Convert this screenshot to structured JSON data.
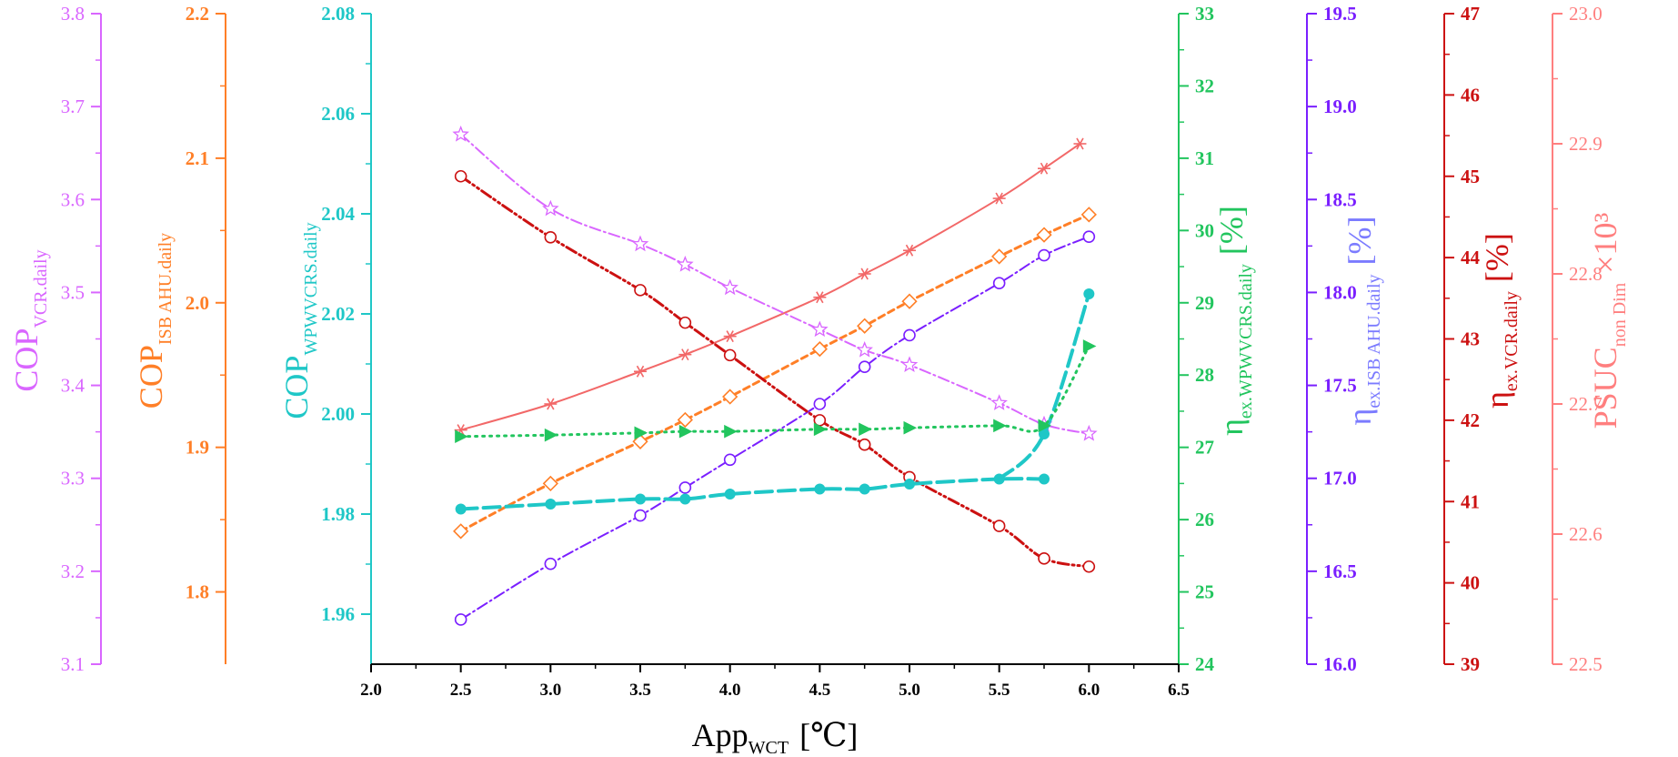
{
  "chart_data": {
    "type": "line",
    "title": "",
    "xlabel": {
      "main": "App",
      "sub": "WCT",
      "unit": "[℃]"
    },
    "x_ticks": [
      "2.0",
      "2.5",
      "3.0",
      "3.5",
      "4.0",
      "4.5",
      "5.0",
      "5.5",
      "6.0",
      "6.5"
    ],
    "xlim": [
      2.0,
      6.5
    ],
    "axes": [
      {
        "id": "cop_vcr",
        "color": "#d966ff",
        "side": "left",
        "lim": [
          3.1,
          3.8
        ],
        "ticks": [
          "3.1",
          "3.2",
          "3.3",
          "3.4",
          "3.5",
          "3.6",
          "3.7",
          "3.8"
        ],
        "label": {
          "main": "COP",
          "sub": "VCR.daily",
          "unit": ""
        }
      },
      {
        "id": "cop_isb",
        "color": "#ff7f27",
        "side": "left",
        "lim": [
          1.75,
          2.2
        ],
        "ticks": [
          "1.8",
          "1.9",
          "2.0",
          "2.1",
          "2.2"
        ],
        "label": {
          "main": "COP",
          "sub": "ISB AHU.daily",
          "unit": ""
        }
      },
      {
        "id": "cop_wpw",
        "color": "#1fc7c7",
        "side": "left",
        "lim": [
          1.95,
          2.08
        ],
        "ticks": [
          "1.96",
          "1.98",
          "2.00",
          "2.02",
          "2.04",
          "2.06",
          "2.08"
        ],
        "label": {
          "main": "COP",
          "sub": "WPWVCRS.daily",
          "unit": ""
        }
      },
      {
        "id": "eta_wpw",
        "color": "#22c55e",
        "side": "right",
        "lim": [
          24,
          33
        ],
        "ticks": [
          "24",
          "25",
          "26",
          "27",
          "28",
          "29",
          "30",
          "31",
          "32",
          "33"
        ],
        "label": {
          "main": "η",
          "sub": "ex.WPWVCRS.daily",
          "unit": "[%]"
        }
      },
      {
        "id": "eta_isb",
        "color": "#7a1fff",
        "side": "right",
        "lim": [
          16.0,
          19.5
        ],
        "ticks": [
          "16.0",
          "16.5",
          "17.0",
          "17.5",
          "18.0",
          "18.5",
          "19.0",
          "19.5"
        ],
        "label": {
          "main": "η",
          "sub": "ex.ISB AHU.daily",
          "unit": "[%]"
        },
        "label_color": "#7b7bff"
      },
      {
        "id": "eta_vcr",
        "color": "#cc1111",
        "side": "right",
        "lim": [
          39,
          47
        ],
        "ticks": [
          "39",
          "40",
          "41",
          "42",
          "43",
          "44",
          "45",
          "46",
          "47"
        ],
        "label": {
          "main": "η",
          "sub": "ex.VCR.daily",
          "unit": "[%]"
        }
      },
      {
        "id": "psuc",
        "color": "#ff7f7f",
        "side": "right",
        "lim": [
          22.5,
          23.0
        ],
        "ticks": [
          "22.5",
          "22.6",
          "22.7",
          "22.8",
          "22.9",
          "23.0"
        ],
        "label": {
          "main": "PSUC",
          "sub": "non Dim",
          "unit": "×10³"
        }
      }
    ],
    "series": [
      {
        "name": "PSUC non Dim ×10³",
        "axis": "psuc",
        "color": "#f26868",
        "dash": "",
        "marker": "asterisk",
        "width": 2,
        "x": [
          2.5,
          3.0,
          3.5,
          3.75,
          4.0,
          4.5,
          4.75,
          5.0,
          5.5,
          5.75,
          5.95
        ],
        "y": [
          22.68,
          22.7,
          22.725,
          22.738,
          22.752,
          22.782,
          22.8,
          22.818,
          22.858,
          22.881,
          22.9
        ]
      },
      {
        "name": "COP ISB AHU.daily",
        "axis": "cop_isb",
        "color": "#ff7f27",
        "dash": "7,5",
        "marker": "diamond",
        "width": 3,
        "x": [
          2.5,
          3.0,
          3.5,
          3.75,
          4.0,
          4.5,
          4.75,
          5.0,
          5.5,
          5.75,
          6.0
        ],
        "y": [
          1.842,
          1.875,
          1.904,
          1.919,
          1.935,
          1.968,
          1.984,
          2.001,
          2.032,
          2.047,
          2.061
        ]
      },
      {
        "name": "η ex.ISB AHU.daily",
        "axis": "eta_isb",
        "color": "#7a1fff",
        "dash": "12,4,2,4",
        "marker": "circle",
        "width": 2,
        "x": [
          2.5,
          3.0,
          3.5,
          3.75,
          4.0,
          4.5,
          4.75,
          5.0,
          5.5,
          5.75,
          6.0
        ],
        "y": [
          16.24,
          16.54,
          16.8,
          16.95,
          17.1,
          17.4,
          17.6,
          17.77,
          18.05,
          18.2,
          18.3
        ]
      },
      {
        "name": "η ex.VCR.daily",
        "axis": "eta_vcr",
        "color": "#cc1111",
        "dash": "12,4,2,4,2,4",
        "marker": "circle",
        "width": 3,
        "x": [
          2.5,
          3.0,
          3.5,
          3.75,
          4.0,
          4.5,
          4.75,
          5.0,
          5.5,
          5.75,
          6.0
        ],
        "y": [
          45.0,
          44.25,
          43.6,
          43.2,
          42.8,
          42.0,
          41.7,
          41.3,
          40.7,
          40.3,
          40.2
        ]
      },
      {
        "name": "COP VCR.daily",
        "axis": "cop_vcr",
        "color": "#d966ff",
        "dash": "12,4,2,4",
        "marker": "star",
        "width": 2,
        "x": [
          2.5,
          3.0,
          3.5,
          3.75,
          4.0,
          4.5,
          4.75,
          5.0,
          5.5,
          5.75,
          6.0
        ],
        "y": [
          3.67,
          3.59,
          3.552,
          3.53,
          3.505,
          3.46,
          3.438,
          3.422,
          3.381,
          3.358,
          3.348
        ]
      },
      {
        "name": "COP WPWVCRS.daily",
        "axis": "cop_wpw",
        "color": "#1fc7c7",
        "dash": "18,7",
        "marker": "filled-circle",
        "width": 4,
        "x": [
          2.5,
          3.0,
          3.5,
          3.75,
          4.0,
          4.5,
          4.75,
          5.0,
          5.5,
          5.75
        ],
        "y": [
          1.981,
          1.982,
          1.983,
          1.983,
          1.984,
          1.985,
          1.985,
          1.986,
          1.987,
          1.987
        ],
        "tail": {
          "x": [
            5.5,
            5.75,
            6.0
          ],
          "y": [
            1.987,
            1.996,
            2.024
          ]
        }
      },
      {
        "name": "η ex.WPWVCRS.daily",
        "axis": "eta_wpw",
        "color": "#22c55e",
        "dash": "2,6",
        "marker": "triangle-right",
        "width": 3,
        "x": [
          2.5,
          3.0,
          3.5,
          3.75,
          4.0,
          4.5,
          4.75,
          5.0,
          5.5,
          5.75,
          6.0
        ],
        "y": [
          27.15,
          27.17,
          27.2,
          27.22,
          27.22,
          27.25,
          27.25,
          27.27,
          27.3,
          27.3,
          28.4
        ]
      }
    ]
  }
}
